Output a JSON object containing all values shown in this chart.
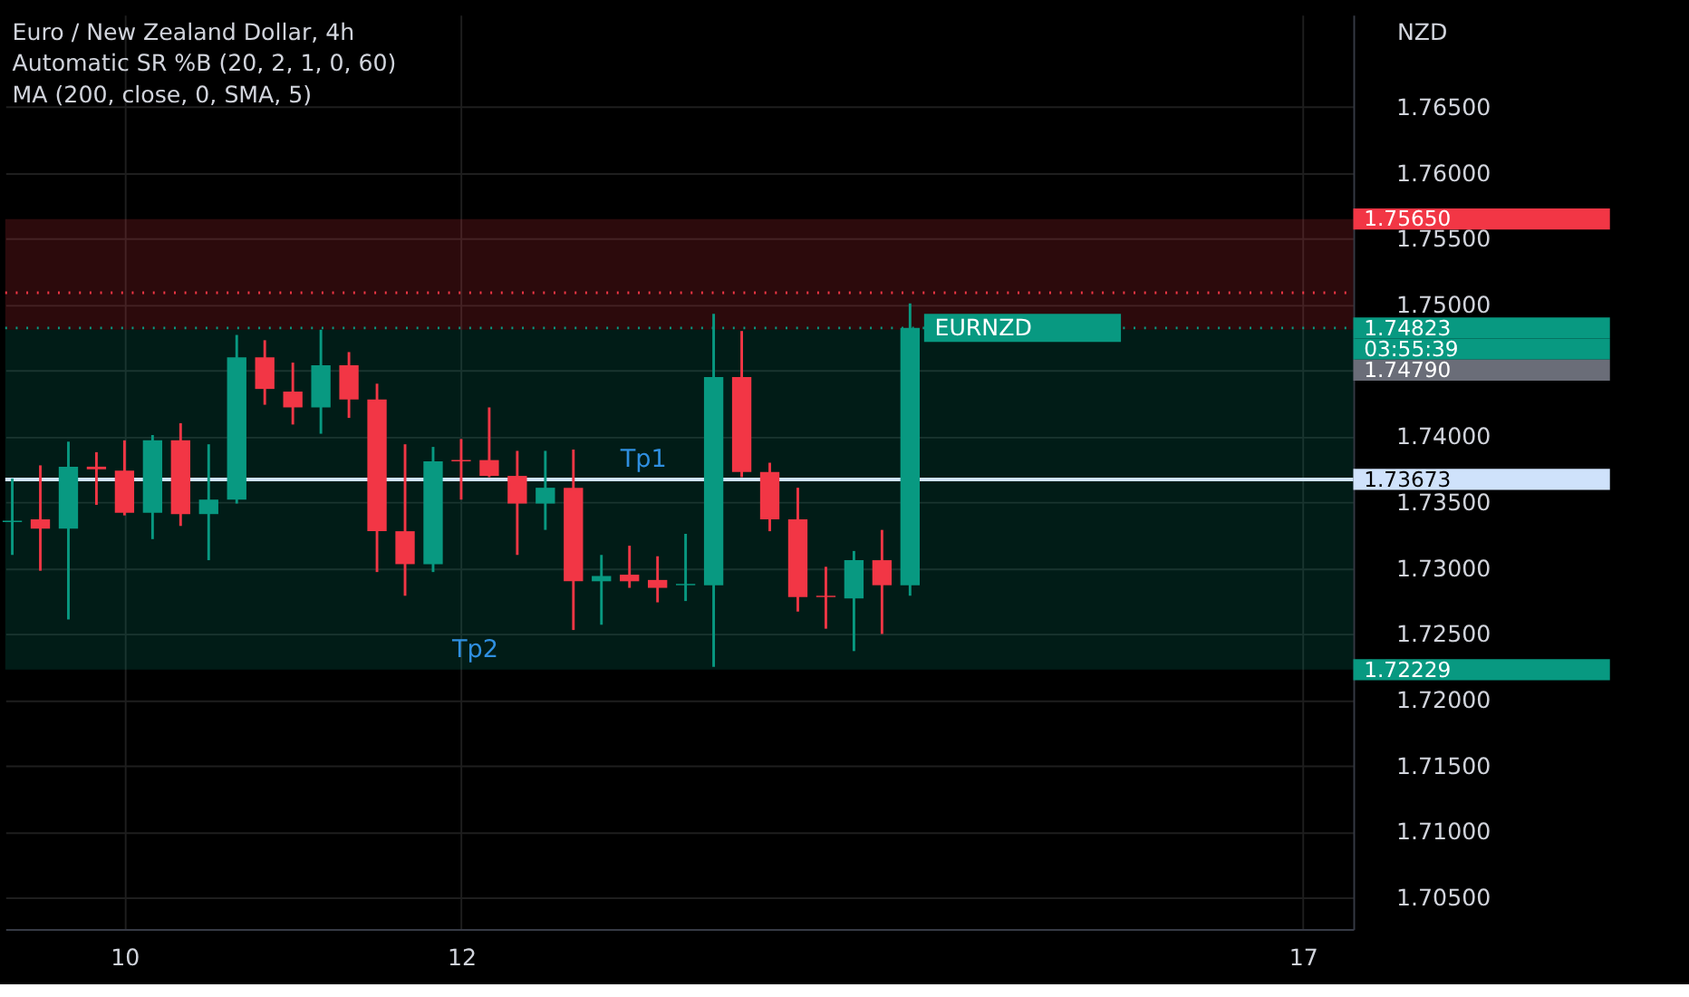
{
  "chart_data": {
    "type": "candlestick",
    "title": "Euro / New Zealand Dollar, 4h",
    "annotations": [
      "Automatic SR %B (20, 2, 1, 0, 60)",
      "MA (200, close, 0, SMA, 5)",
      {
        "text": "Tp1",
        "x": 13.0833,
        "y": 1.73673
      },
      {
        "text": "Tp2",
        "x": 12.0833,
        "y": 1.72229
      },
      {
        "text": "EURNZD",
        "x": 14.6667,
        "y": 1.74823
      },
      "03:55:39",
      "1.74790"
    ],
    "ylabel": "NZD",
    "x": [
      9.3333,
      9.5,
      9.6667,
      9.8333,
      10,
      10.1667,
      10.3333,
      10.5,
      10.6667,
      10.8333,
      11,
      11.1667,
      11.3333,
      11.5,
      11.6667,
      11.8333,
      12,
      12.1667,
      12.3333,
      12.5,
      12.6667,
      12.8333,
      13,
      13.1667,
      13.3333,
      13.5,
      13.6667,
      13.8333,
      14,
      14.1667,
      14.3333,
      14.5,
      14.6667
    ],
    "ohlc": [
      [
        1.7335,
        1.7368,
        1.731,
        1.7336
      ],
      [
        1.7337,
        1.7378,
        1.7298,
        1.733
      ],
      [
        1.733,
        1.7396,
        1.7261,
        1.7377
      ],
      [
        1.7377,
        1.7388,
        1.7348,
        1.7375
      ],
      [
        1.7374,
        1.7397,
        1.734,
        1.7342
      ],
      [
        1.7342,
        1.7401,
        1.7322,
        1.7397
      ],
      [
        1.7397,
        1.741,
        1.7332,
        1.7341
      ],
      [
        1.7341,
        1.7394,
        1.7306,
        1.7352
      ],
      [
        1.7352,
        1.7477,
        1.7349,
        1.746
      ],
      [
        1.746,
        1.7473,
        1.7424,
        1.7436
      ],
      [
        1.7434,
        1.7456,
        1.7409,
        1.7422
      ],
      [
        1.7422,
        1.7481,
        1.7402,
        1.7454
      ],
      [
        1.7454,
        1.7464,
        1.7414,
        1.7428
      ],
      [
        1.7428,
        1.744,
        1.7297,
        1.7328
      ],
      [
        1.7328,
        1.7394,
        1.7279,
        1.7303
      ],
      [
        1.7303,
        1.7392,
        1.7297,
        1.7381
      ],
      [
        1.7382,
        1.7398,
        1.7352,
        1.7381
      ],
      [
        1.7382,
        1.7422,
        1.7369,
        1.737
      ],
      [
        1.737,
        1.7389,
        1.731,
        1.7349
      ],
      [
        1.7349,
        1.7389,
        1.7329,
        1.7361
      ],
      [
        1.7361,
        1.739,
        1.7253,
        1.729
      ],
      [
        1.729,
        1.731,
        1.7257,
        1.7294
      ],
      [
        1.7295,
        1.7317,
        1.7285,
        1.729
      ],
      [
        1.7291,
        1.7309,
        1.7274,
        1.7285
      ],
      [
        1.7287,
        1.7326,
        1.7275,
        1.7288
      ],
      [
        1.7287,
        1.7493,
        1.7225,
        1.7445
      ],
      [
        1.7445,
        1.748,
        1.7369,
        1.7373
      ],
      [
        1.7373,
        1.738,
        1.7328,
        1.7337
      ],
      [
        1.7337,
        1.7361,
        1.7267,
        1.7278
      ],
      [
        1.7279,
        1.7301,
        1.7254,
        1.7278
      ],
      [
        1.7277,
        1.7313,
        1.7237,
        1.7306
      ],
      [
        1.7306,
        1.7329,
        1.725,
        1.7287
      ],
      [
        1.7287,
        1.7501,
        1.7279,
        1.74823
      ]
    ],
    "colors": [
      "#089981",
      "#f23645",
      "#089981",
      "#f23645",
      "#f23645",
      "#089981",
      "#f23645",
      "#089981",
      "#089981",
      "#f23645",
      "#f23645",
      "#089981",
      "#f23645",
      "#f23645",
      "#f23645",
      "#089981",
      "#f23645",
      "#f23645",
      "#f23645",
      "#089981",
      "#f23645",
      "#089981",
      "#f23645",
      "#f23645",
      "#089981",
      "#089981",
      "#f23645",
      "#f23645",
      "#f23645",
      "#f23645",
      "#089981",
      "#f23645",
      "#089981"
    ],
    "xlim": [
      9.2917,
      17.3
    ],
    "xticks": [
      10,
      12,
      17
    ],
    "ylim": [
      1.7026,
      1.772
    ],
    "yticks": [
      {
        "value": 1.705,
        "label": "1.70500"
      },
      {
        "value": 1.71,
        "label": "1.71000"
      },
      {
        "value": 1.715,
        "label": "1.71500"
      },
      {
        "value": 1.72,
        "label": "1.72000"
      },
      {
        "value": 1.725,
        "label": "1.72500"
      },
      {
        "value": 1.73,
        "label": "1.73000"
      },
      {
        "value": 1.735,
        "label": "1.73500"
      },
      {
        "value": 1.74,
        "label": "1.74000"
      },
      {
        "value": 1.745,
        "label": null
      },
      {
        "value": 1.75,
        "label": "1.75000"
      },
      {
        "value": 1.755,
        "label": "1.75500"
      },
      {
        "value": 1.76,
        "label": "1.76000"
      },
      {
        "value": 1.765,
        "label": "1.76500"
      }
    ],
    "bands": [
      {
        "axis": "y",
        "from": 1.7481,
        "to": 1.7565,
        "label": "1.75650",
        "color": "#f23645"
      },
      {
        "axis": "y",
        "from": 1.72229,
        "to": 1.7481,
        "label": "1.72229",
        "color": "#089981"
      }
    ],
    "ref_lines": [
      {
        "axis": "y",
        "value": 1.73673,
        "label": "1.73673",
        "color": "#cfe2fb",
        "line_style": "solid"
      },
      {
        "axis": "y",
        "value": 1.7509,
        "color": "#f23645",
        "line_style": "dotted"
      },
      {
        "axis": "y",
        "value": 1.74823,
        "label": "1.74823",
        "color": "#089981",
        "line_style": "dotted"
      }
    ],
    "grid": true
  }
}
